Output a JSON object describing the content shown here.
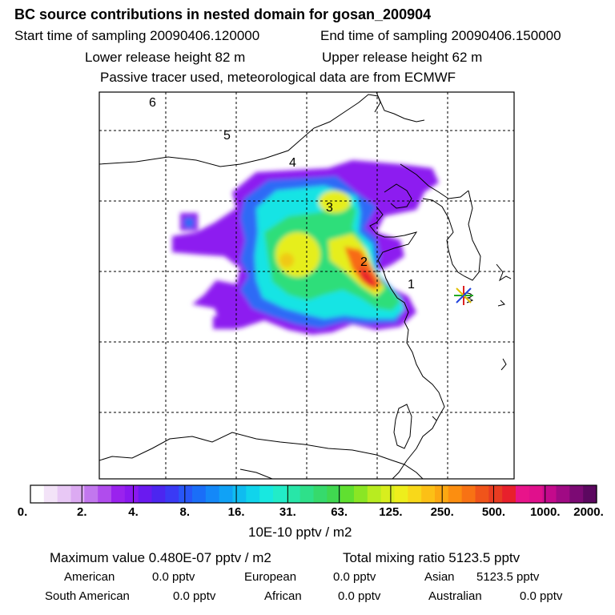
{
  "header": {
    "title": "BC  source contributions in nested domain for gosan_200904",
    "start_time": "Start time of sampling 20090406.120000",
    "end_time": "End time of sampling 20090406.150000",
    "lower_release": "Lower release height   82 m",
    "upper_release": "Upper release height   62 m",
    "tracer_note": "Passive tracer used, meteorological data are from ECMWF"
  },
  "chart_data": {
    "type": "heatmap",
    "title": "BC  source contributions in nested domain for gosan_200904",
    "trajectory_labels": [
      "1",
      "2",
      "3",
      "4",
      "5",
      "6"
    ],
    "colorbar": {
      "ticks": [
        "0.",
        "2.",
        "4.",
        "8.",
        "16.",
        "31.",
        "63.",
        "125.",
        "250.",
        "500.",
        "1000.",
        "2000."
      ],
      "unit": "10E-10 pptv / m2",
      "colors": [
        "#ffffff",
        "#f3e3f8",
        "#e8c8f5",
        "#dcaaf2",
        "#c277ee",
        "#b04ced",
        "#9a22ee",
        "#8a18f0",
        "#6a1af0",
        "#4c26f0",
        "#3a3af5",
        "#2856f8",
        "#1a6ef8",
        "#1488f8",
        "#10a2f6",
        "#0fbcf0",
        "#10d4ec",
        "#18e8e0",
        "#22ecc8",
        "#28e6a8",
        "#2ee08a",
        "#36da6c",
        "#40d850",
        "#60e030",
        "#8ae624",
        "#b8ec20",
        "#d8ee1e",
        "#eeee1c",
        "#f8d81a",
        "#fcc016",
        "#fca812",
        "#fc8e10",
        "#f87214",
        "#f0541a",
        "#e83c22",
        "#e8202c",
        "#e8148a",
        "#e0108c",
        "#c40a8c",
        "#a00a84",
        "#7c0a74",
        "#5c0860"
      ]
    },
    "receptor": "gosan"
  },
  "footer": {
    "max_label": "Maximum value  0.480E-07 pptv / m2",
    "total_label": "Total mixing ratio     5123.5 pptv",
    "american": "American",
    "american_val": "0.0 pptv",
    "european": "European",
    "european_val": "0.0 pptv",
    "asian": "Asian",
    "asian_val": "5123.5 pptv",
    "south_american": "South American",
    "south_american_val": "0.0 pptv",
    "african": "African",
    "african_val": "0.0 pptv",
    "australian": "Australian",
    "australian_val": "0.0 pptv"
  }
}
